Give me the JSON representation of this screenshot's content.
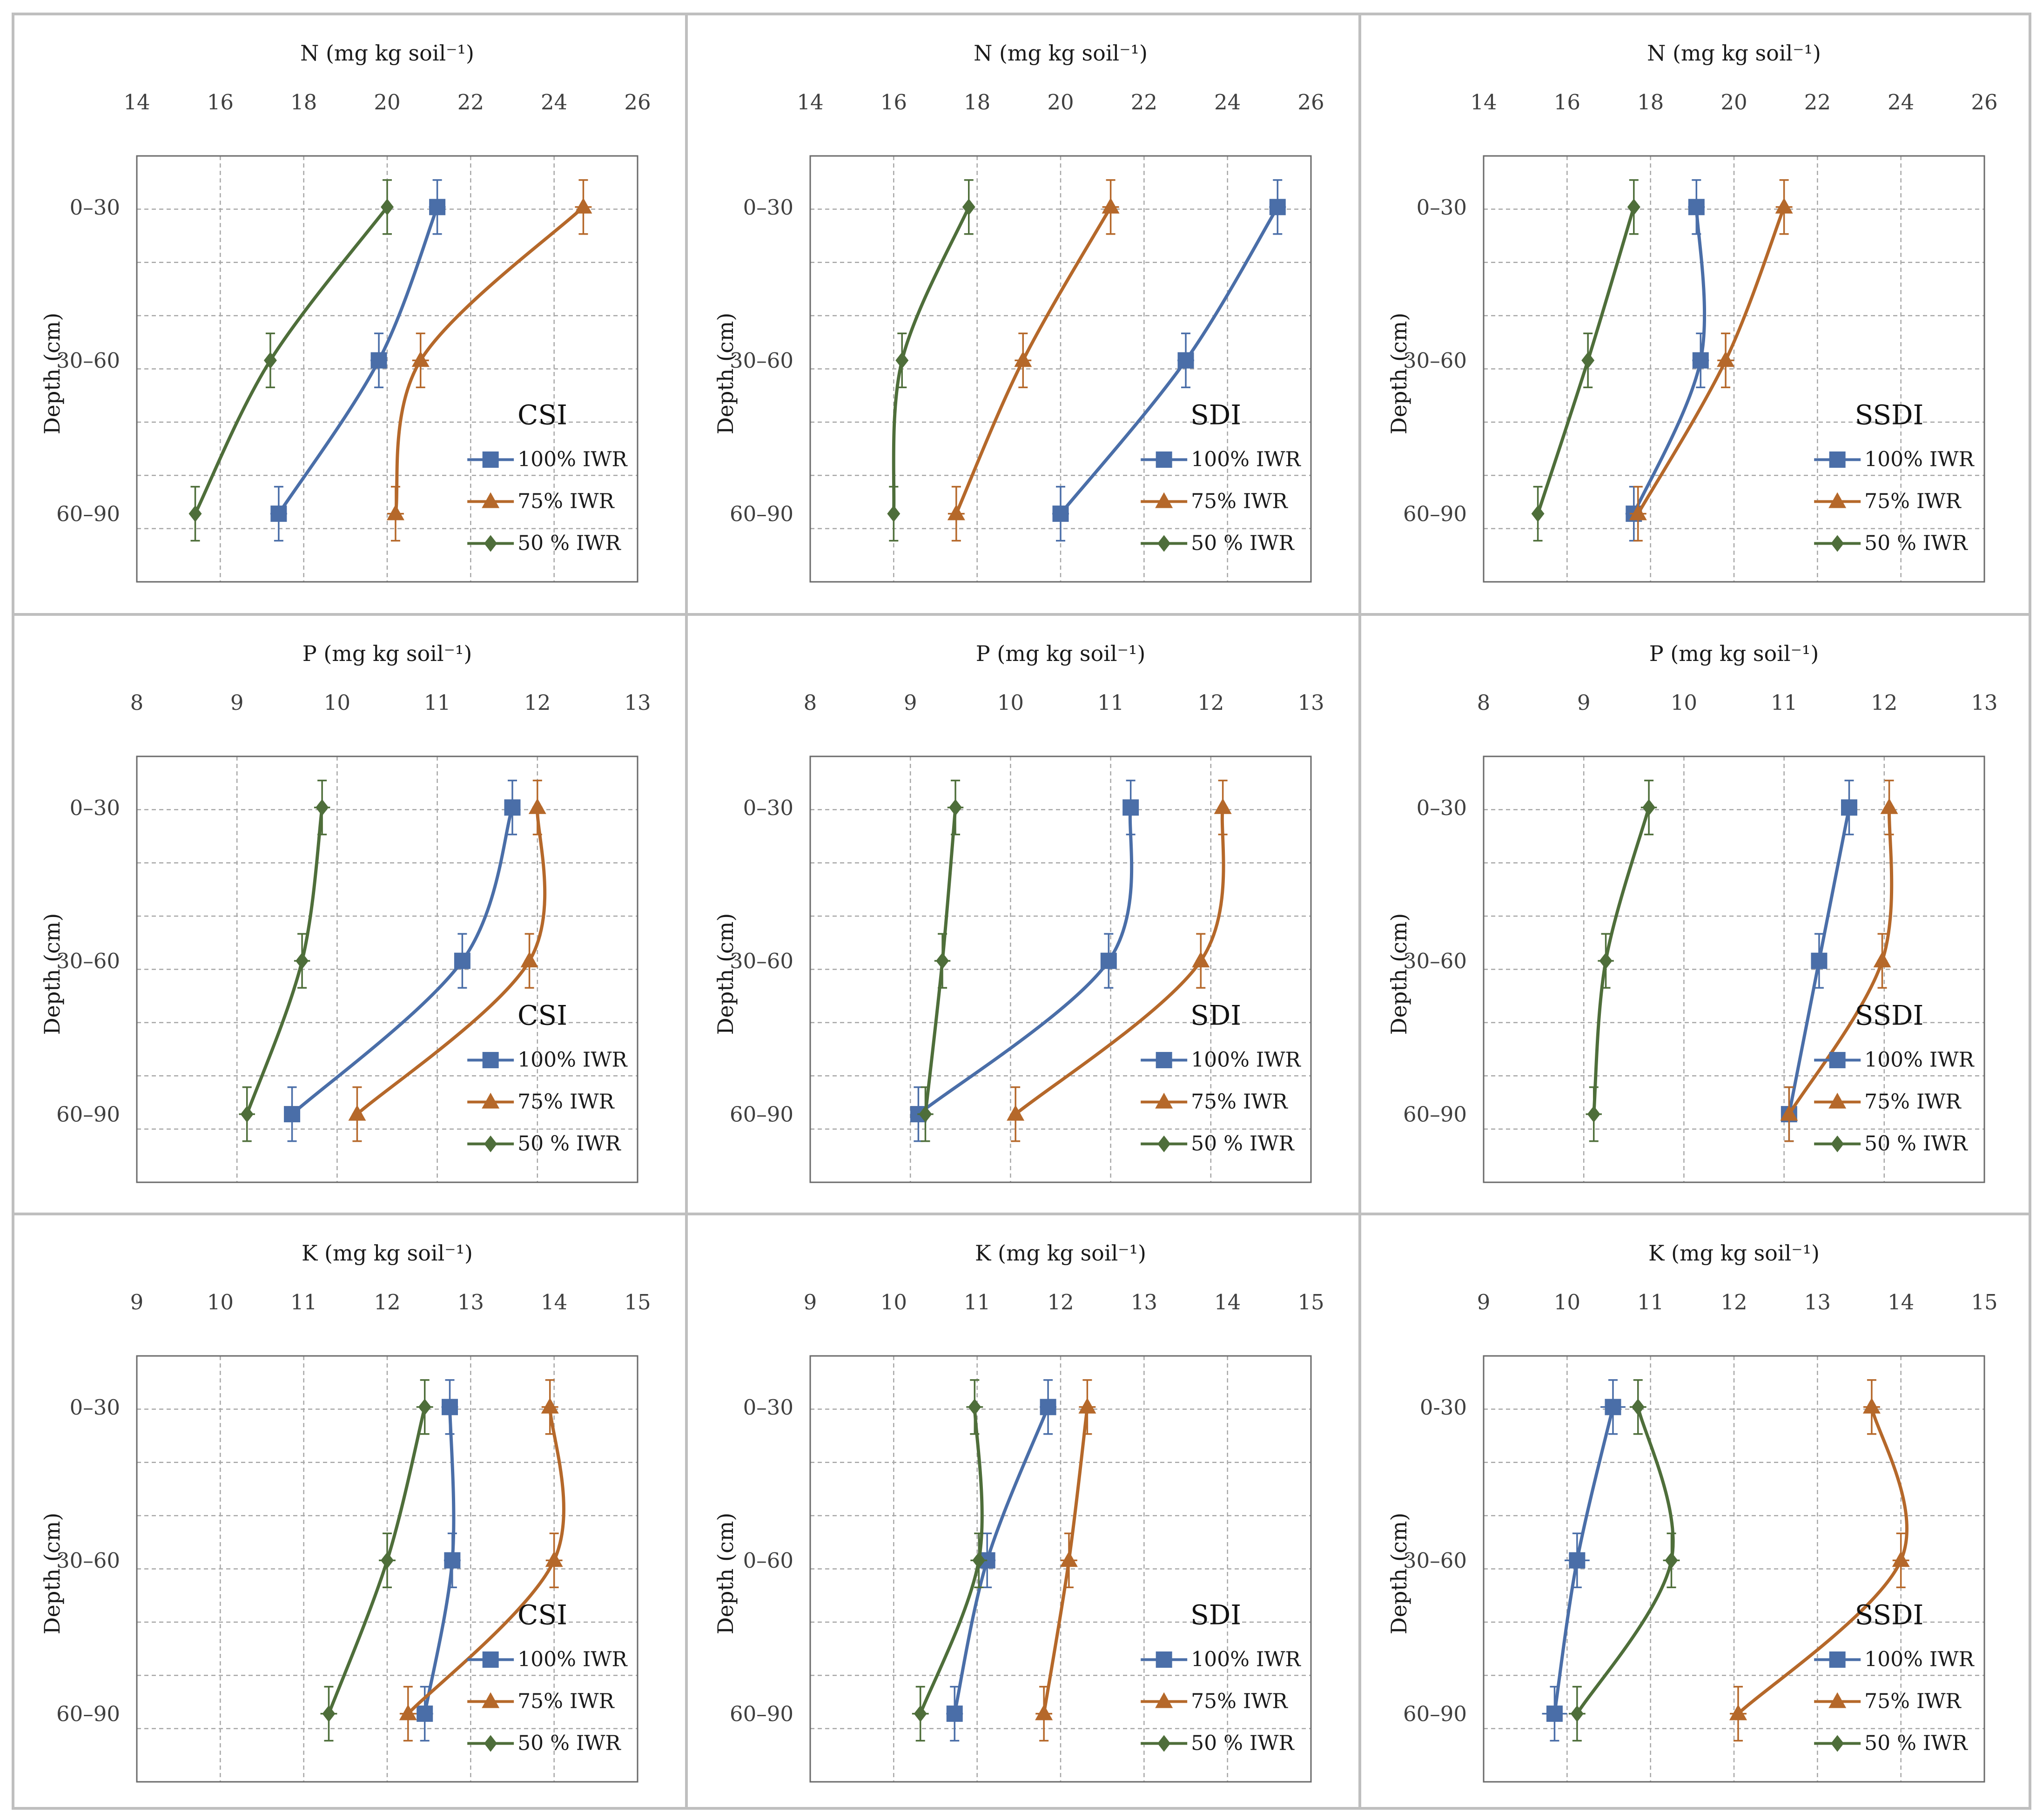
{
  "colors": {
    "s100": "#4a6ea8",
    "s75": "#b5682a",
    "s50": "#4e6e3a",
    "grid": "#a6a6a6",
    "frame": "#6a6a6a",
    "panel_border": "#bfbfbf"
  },
  "chart_data": [
    {
      "type": "line",
      "panel": "N-CSI",
      "title": "CSI",
      "xlabel": "N (mg kg soil⁻¹)",
      "ylabel": "Depth (cm)",
      "xlim": [
        14,
        26
      ],
      "xticks": [
        14,
        16,
        18,
        20,
        22,
        24,
        26
      ],
      "depth_labels": [
        "0–30",
        "30–60",
        "60–90"
      ],
      "series": [
        {
          "name": "100% IWR",
          "values": [
            21.2,
            19.8,
            17.4
          ],
          "errors": [
            0.2,
            0.2,
            0.2
          ]
        },
        {
          "name": "75% IWR",
          "values": [
            24.7,
            20.8,
            20.2
          ],
          "errors": [
            0.2,
            0.2,
            0.2
          ]
        },
        {
          "name": "50 % IWR",
          "values": [
            20.0,
            17.2,
            15.4
          ],
          "errors": [
            0.1,
            0.1,
            0.1
          ]
        }
      ]
    },
    {
      "type": "line",
      "panel": "N-SDI",
      "title": "SDI",
      "xlabel": "N (mg kg soil⁻¹)",
      "ylabel": "Depth (cm)",
      "xlim": [
        14,
        26
      ],
      "xticks": [
        14,
        16,
        18,
        20,
        22,
        24,
        26
      ],
      "depth_labels": [
        "0–30",
        "30–60",
        "60–90"
      ],
      "series": [
        {
          "name": "100% IWR",
          "values": [
            25.2,
            23.0,
            20.0
          ],
          "errors": [
            0.2,
            0.2,
            0.2
          ]
        },
        {
          "name": "75% IWR",
          "values": [
            21.2,
            19.1,
            17.5
          ],
          "errors": [
            0.2,
            0.2,
            0.2
          ]
        },
        {
          "name": "50 % IWR",
          "values": [
            17.8,
            16.2,
            16.0
          ],
          "errors": [
            0.1,
            0.1,
            0.1
          ]
        }
      ]
    },
    {
      "type": "line",
      "panel": "N-SSDI",
      "title": "SSDI",
      "xlabel": "N (mg kg soil⁻¹)",
      "ylabel": "Depth (cm)",
      "xlim": [
        14,
        26
      ],
      "xticks": [
        14,
        16,
        18,
        20,
        22,
        24,
        26
      ],
      "depth_labels": [
        "0–30",
        "30–60",
        "60–90"
      ],
      "series": [
        {
          "name": "100% IWR",
          "values": [
            19.1,
            19.2,
            17.6
          ],
          "errors": [
            0.2,
            0.2,
            0.2
          ]
        },
        {
          "name": "75% IWR",
          "values": [
            21.2,
            19.8,
            17.7
          ],
          "errors": [
            0.2,
            0.2,
            0.2
          ]
        },
        {
          "name": "50 % IWR",
          "values": [
            17.6,
            16.5,
            15.3
          ],
          "errors": [
            0.1,
            0.1,
            0.1
          ]
        }
      ]
    },
    {
      "type": "line",
      "panel": "P-CSI",
      "title": "CSI",
      "xlabel": "P (mg kg soil⁻¹)",
      "ylabel": "Depth (cm)",
      "xlim": [
        8,
        13
      ],
      "xticks": [
        8,
        9,
        10,
        11,
        12,
        13
      ],
      "depth_labels": [
        "0–30",
        "30–60",
        "60–90"
      ],
      "series": [
        {
          "name": "100% IWR",
          "values": [
            11.75,
            11.25,
            9.55
          ],
          "errors": [
            0.07,
            0.07,
            0.07
          ]
        },
        {
          "name": "75% IWR",
          "values": [
            12.0,
            11.92,
            10.2
          ],
          "errors": [
            0.05,
            0.05,
            0.05
          ]
        },
        {
          "name": "50 % IWR",
          "values": [
            9.85,
            9.65,
            9.1
          ],
          "errors": [
            0.08,
            0.08,
            0.08
          ]
        }
      ]
    },
    {
      "type": "line",
      "panel": "P-SDI",
      "title": "SDI",
      "xlabel": "P (mg kg soil⁻¹)",
      "ylabel": "Depth (cm)",
      "xlim": [
        8,
        13
      ],
      "xticks": [
        8,
        9,
        10,
        11,
        12,
        13
      ],
      "depth_labels": [
        "0–30",
        "30–60",
        "60–90"
      ],
      "series": [
        {
          "name": "100% IWR",
          "values": [
            11.2,
            10.98,
            9.08
          ],
          "errors": [
            0.07,
            0.07,
            0.07
          ]
        },
        {
          "name": "75% IWR",
          "values": [
            12.12,
            11.9,
            10.05
          ],
          "errors": [
            0.05,
            0.05,
            0.05
          ]
        },
        {
          "name": "50 % IWR",
          "values": [
            9.45,
            9.32,
            9.15
          ],
          "errors": [
            0.08,
            0.08,
            0.08
          ]
        }
      ]
    },
    {
      "type": "line",
      "panel": "P-SSDI",
      "title": "SSDI",
      "xlabel": "P (mg kg soil⁻¹)",
      "ylabel": "Depth (cm)",
      "xlim": [
        8,
        13
      ],
      "xticks": [
        8,
        9,
        10,
        11,
        12,
        13
      ],
      "depth_labels": [
        "0–30",
        "30–60",
        "60–90"
      ],
      "series": [
        {
          "name": "100% IWR",
          "values": [
            11.65,
            11.35,
            11.05
          ],
          "errors": [
            0.05,
            0.05,
            0.05
          ]
        },
        {
          "name": "75% IWR",
          "values": [
            12.05,
            11.98,
            11.05
          ],
          "errors": [
            0.05,
            0.05,
            0.05
          ]
        },
        {
          "name": "50 % IWR",
          "values": [
            9.65,
            9.22,
            9.1
          ],
          "errors": [
            0.08,
            0.08,
            0.08
          ]
        }
      ]
    },
    {
      "type": "line",
      "panel": "K-CSI",
      "title": "CSI",
      "xlabel": "K (mg kg soil⁻¹)",
      "ylabel": "Depth (cm)",
      "xlim": [
        9,
        15
      ],
      "xticks": [
        9,
        10,
        11,
        12,
        13,
        14,
        15
      ],
      "depth_labels": [
        "0–30",
        "30–60",
        "60–90"
      ],
      "series": [
        {
          "name": "100% IWR",
          "values": [
            12.75,
            12.78,
            12.45
          ],
          "errors": [
            0.1,
            0.1,
            0.1
          ]
        },
        {
          "name": "75% IWR",
          "values": [
            13.95,
            14.0,
            12.25
          ],
          "errors": [
            0.1,
            0.1,
            0.1
          ]
        },
        {
          "name": "50 % IWR",
          "values": [
            12.45,
            12.0,
            11.3
          ],
          "errors": [
            0.1,
            0.1,
            0.1
          ]
        }
      ]
    },
    {
      "type": "line",
      "panel": "K-SDI",
      "title": "SDI",
      "xlabel": "K (mg kg soil⁻¹)",
      "ylabel": "Depth (cm)",
      "xlim": [
        9,
        15
      ],
      "xticks": [
        9,
        10,
        11,
        12,
        13,
        14,
        15
      ],
      "depth_labels": [
        "0–30",
        "0–60",
        "60–90"
      ],
      "series": [
        {
          "name": "100% IWR",
          "values": [
            11.85,
            11.12,
            10.73
          ],
          "errors": [
            0.1,
            0.1,
            0.1
          ]
        },
        {
          "name": "75% IWR",
          "values": [
            12.32,
            12.1,
            11.8
          ],
          "errors": [
            0.1,
            0.1,
            0.1
          ]
        },
        {
          "name": "50 % IWR",
          "values": [
            10.97,
            11.02,
            10.32
          ],
          "errors": [
            0.1,
            0.1,
            0.1
          ]
        }
      ]
    },
    {
      "type": "line",
      "panel": "K-SSDI",
      "title": "SSDI",
      "xlabel": "K (mg kg soil⁻¹)",
      "ylabel": "Depth (cm)",
      "xlim": [
        9,
        15
      ],
      "xticks": [
        9,
        10,
        11,
        12,
        13,
        14,
        15
      ],
      "depth_labels": [
        "0-30",
        "30–60",
        "60–90"
      ],
      "series": [
        {
          "name": "100% IWR",
          "values": [
            10.55,
            10.12,
            9.85
          ],
          "errors": [
            0.15,
            0.15,
            0.15
          ]
        },
        {
          "name": "75% IWR",
          "values": [
            13.65,
            14.0,
            12.05
          ],
          "errors": [
            0.1,
            0.1,
            0.1
          ]
        },
        {
          "name": "50 % IWR",
          "values": [
            10.85,
            11.25,
            10.12
          ],
          "errors": [
            0.1,
            0.1,
            0.1
          ]
        }
      ]
    }
  ]
}
